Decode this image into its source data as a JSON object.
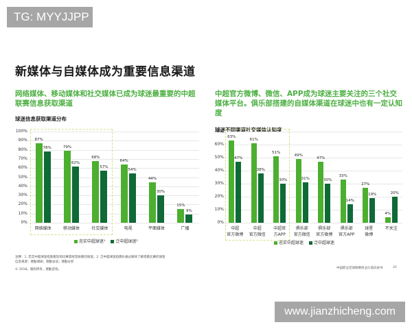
{
  "watermarks": {
    "top_left": "TG: MYYJJPP",
    "bottom_right": "www.jianzhicheng.com"
  },
  "page": {
    "title": "新媒体与自媒体成为重要信息渠道",
    "left_subtitle": "网络媒体、移动媒体和社交媒体已成为球迷最重要的中超联赛信息获取渠道",
    "right_subtitle": "中超官方微博、微信、APP成为球迷主要关注的三个社交媒体平台。俱乐部搭建的自媒体渠道在球迷中也有一定认知度",
    "left_note_line1": "注释：1. 忠实中超球迷指观看现场比赛或经常收看的球迷；2. 泛中超球迷指偶尔通过媒体了解或看比赛的球迷",
    "left_note_line2": "信息来源：德勤调研；德勤访谈；德勤分析",
    "left_note_line3": "© 2018。版权所有，德勤咨询。",
    "footer_text": "中国职业足球联赛商业价值白皮书",
    "page_number": "20"
  },
  "colors": {
    "light_green": "#4caf2f",
    "dark_green": "#0f6a37",
    "subtitle_green": "#4db043",
    "highlight": "#d4e08a"
  },
  "chart_data": [
    {
      "type": "bar",
      "title": "球迷信息获取渠道分布",
      "categories": [
        "网络媒体",
        "移动媒体",
        "社交媒体",
        "电视",
        "平面媒体",
        "广播"
      ],
      "series": [
        {
          "name": "忠实中超球迷¹",
          "values": [
            87,
            79,
            68,
            64,
            44,
            15
          ]
        },
        {
          "name": "泛中超球迷²",
          "values": [
            78,
            62,
            57,
            54,
            30,
            9
          ]
        }
      ],
      "value_labels": [
        [
          "87%",
          "79%",
          "68%",
          "64%",
          "44%",
          "15%"
        ],
        [
          "78%",
          "62%",
          "57%",
          "54%",
          "30%",
          "9%"
        ]
      ],
      "yticks": [
        "0%",
        "10%",
        "20%",
        "30%",
        "40%",
        "50%",
        "60%",
        "70%",
        "80%",
        "90%",
        "100%"
      ],
      "ylim": [
        0,
        100
      ],
      "xlabel": "",
      "ylabel": "",
      "grid": true,
      "legend_position": "bottom",
      "highlighted_categories": [
        "网络媒体",
        "移动媒体",
        "社交媒体"
      ]
    },
    {
      "type": "bar",
      "title": "球迷不同渠道社交媒体认知度",
      "categories": [
        "中超官方微博",
        "中超官方微信",
        "中超官方APP",
        "俱乐部官方微信",
        "俱乐部官方微博",
        "俱乐部官方APP",
        "球星微博",
        "不关注"
      ],
      "category_lines": [
        [
          "中超",
          "官方微博"
        ],
        [
          "中超",
          "官方微信"
        ],
        [
          "中超官",
          "方APP"
        ],
        [
          "俱乐部",
          "官方微信"
        ],
        [
          "俱乐部",
          "官方微博"
        ],
        [
          "俱乐部",
          "官方APP"
        ],
        [
          "球星",
          "微博"
        ],
        [
          "不关注",
          ""
        ]
      ],
      "series": [
        {
          "name": "忠实中超球迷",
          "values": [
            63,
            61,
            51,
            49,
            47,
            33,
            27,
            4
          ]
        },
        {
          "name": "泛中超球迷",
          "values": [
            47,
            38,
            30,
            31,
            30,
            14,
            19,
            20
          ]
        }
      ],
      "value_labels": [
        [
          "63%",
          "61%",
          "51%",
          "49%",
          "47%",
          "33%",
          "27%",
          "4%"
        ],
        [
          "47%",
          "38%",
          "30%",
          "31%",
          "30%",
          "14%",
          "19%",
          "20%"
        ]
      ],
      "yticks": [
        "0%",
        "10%",
        "20%",
        "30%",
        "40%",
        "50%",
        "60%",
        "70%"
      ],
      "ylim": [
        0,
        70
      ],
      "xlabel": "",
      "ylabel": "",
      "grid": true,
      "legend_position": "bottom",
      "highlighted_categories": [
        "中超官方微博",
        "中超官方微信",
        "中超官方APP"
      ]
    }
  ]
}
